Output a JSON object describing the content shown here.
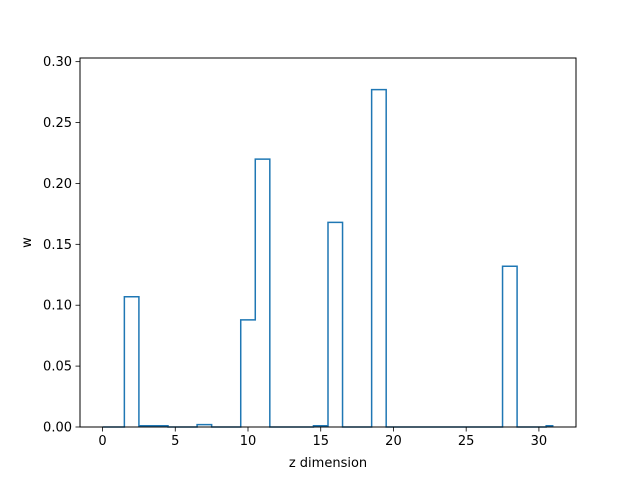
{
  "chart_data": {
    "type": "line",
    "drawstyle": "steps-mid",
    "title": "",
    "xlabel": "z dimension",
    "ylabel": "w",
    "xlim": [
      -1.55,
      32.55
    ],
    "ylim": [
      0.0,
      0.303
    ],
    "xticks": [
      0,
      5,
      10,
      15,
      20,
      25,
      30
    ],
    "xtick_labels": [
      "0",
      "5",
      "10",
      "15",
      "20",
      "25",
      "30"
    ],
    "yticks": [
      0.0,
      0.05,
      0.1,
      0.15,
      0.2,
      0.25,
      0.3
    ],
    "ytick_labels": [
      "0.00",
      "0.05",
      "0.10",
      "0.15",
      "0.20",
      "0.25",
      "0.30"
    ],
    "grid": false,
    "series": [
      {
        "color": "#1f77b4",
        "x": [
          0,
          1,
          2,
          3,
          4,
          5,
          6,
          7,
          8,
          9,
          10,
          11,
          12,
          13,
          14,
          15,
          16,
          17,
          18,
          19,
          20,
          21,
          22,
          23,
          24,
          25,
          26,
          27,
          28,
          29,
          30,
          31
        ],
        "values": [
          0.0,
          0.0,
          0.107,
          0.001,
          0.001,
          0.0,
          0.0,
          0.002,
          0.0,
          0.0,
          0.088,
          0.22,
          0.0,
          0.0,
          0.0,
          0.001,
          0.168,
          0.0,
          0.0,
          0.277,
          0.0,
          0.0,
          0.0,
          0.0,
          0.0,
          0.0,
          0.0,
          0.0,
          0.132,
          0.0,
          0.0,
          0.001
        ]
      }
    ]
  }
}
